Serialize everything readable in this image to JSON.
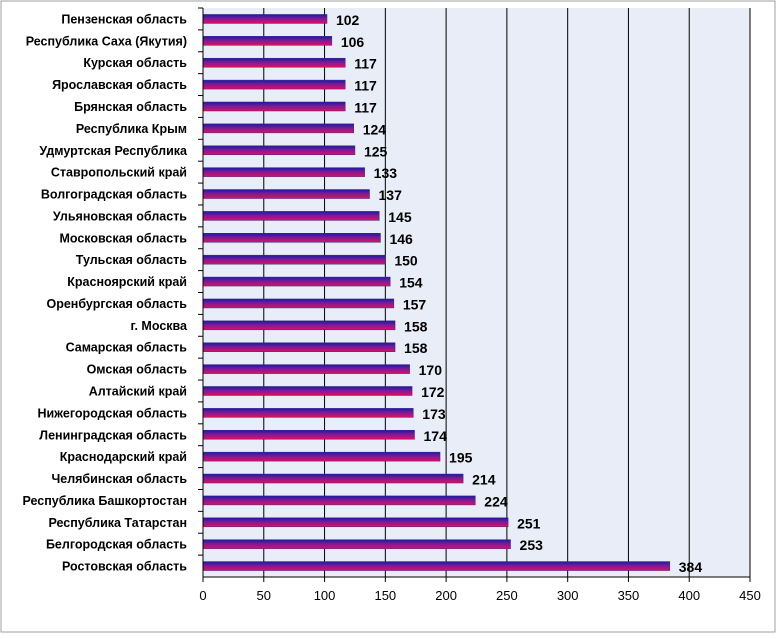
{
  "chart_data": {
    "type": "bar",
    "orientation": "horizontal",
    "title": "",
    "xlabel": "",
    "ylabel": "",
    "xlim": [
      0,
      450
    ],
    "x_ticks": [
      0,
      50,
      100,
      150,
      200,
      250,
      300,
      350,
      400,
      450
    ],
    "grid": "vertical",
    "legend": "none",
    "colors": {
      "bar_top": "#1a1aa0",
      "bar_bottom": "#e0105a",
      "plot_bg": "#e8edf7",
      "grid": "#000000"
    },
    "categories": [
      "Пензенская область",
      "Республика Саха (Якутия)",
      "Курская область",
      "Ярославская область",
      "Брянская область",
      "Республика Крым",
      "Удмуртская Республика",
      "Ставропольский край",
      "Волгоградская область",
      "Ульяновская область",
      "Московская область",
      "Тульская область",
      "Красноярский край",
      "Оренбургская область",
      "г. Москва",
      "Самарская область",
      "Омская область",
      "Алтайский край",
      "Нижегородская область",
      "Ленинградская область",
      "Краснодарский край",
      "Челябинская область",
      "Республика Башкортостан",
      "Республика Татарстан",
      "Белгородская область",
      "Ростовская область"
    ],
    "values": [
      102,
      106,
      117,
      117,
      117,
      124,
      125,
      133,
      137,
      145,
      146,
      150,
      154,
      157,
      158,
      158,
      170,
      172,
      173,
      174,
      195,
      214,
      224,
      251,
      253,
      384
    ]
  }
}
